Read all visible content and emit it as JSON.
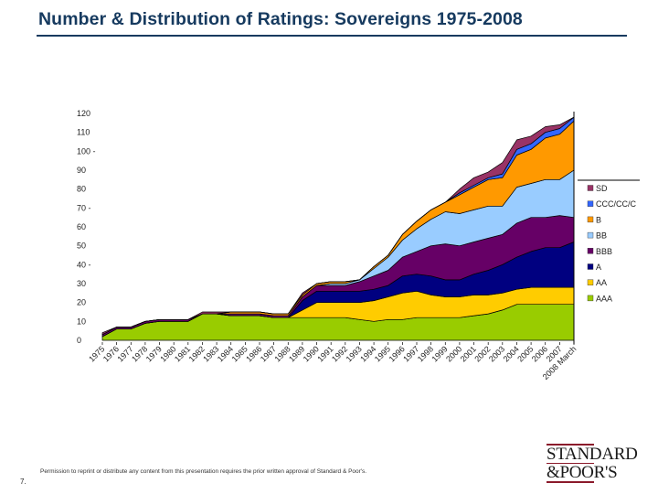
{
  "page": {
    "title": "Number & Distribution of Ratings: Sovereigns 1975-2008",
    "page_number": "7.",
    "footnote": "Permission to reprint or distribute any content from this presentation requires the prior written approval of Standard & Poor's.",
    "logo": {
      "line1": "STANDARD",
      "line2": "&POOR'S",
      "rule_color": "#8b1a2b"
    }
  },
  "chart_data": {
    "type": "area",
    "stacked": true,
    "title": "Number & Distribution of Ratings: Sovereigns 1975-2008",
    "xlabel": "",
    "ylabel": "",
    "ylim": [
      0,
      120
    ],
    "yticks": [
      "0",
      "10",
      "20",
      "30",
      "40 -",
      "50",
      "60",
      "70 -",
      "80",
      "90",
      "100 -",
      "110",
      "120"
    ],
    "grid": false,
    "legend_position": "right",
    "categories": [
      "1975",
      "1976",
      "1977",
      "1978",
      "1979",
      "1980",
      "1981",
      "1982",
      "1983",
      "1984",
      "1985",
      "1986",
      "1987",
      "1988",
      "1989",
      "1990",
      "1991",
      "1992",
      "1993",
      "1994",
      "1995",
      "1996",
      "1997",
      "1998",
      "1999",
      "2000",
      "2001",
      "2002",
      "2003",
      "2004",
      "2005",
      "2006",
      "2007",
      "2008 March"
    ],
    "series": [
      {
        "name": "AAA",
        "color": "#99cc00",
        "values": [
          2,
          6,
          6,
          9,
          10,
          10,
          10,
          14,
          14,
          13,
          13,
          13,
          12,
          12,
          12,
          12,
          12,
          12,
          11,
          10,
          11,
          11,
          12,
          12,
          12,
          12,
          13,
          14,
          16,
          19,
          19,
          19,
          19,
          19
        ]
      },
      {
        "name": "AA",
        "color": "#ffcc00",
        "values": [
          0,
          0,
          0,
          0,
          0,
          0,
          0,
          0,
          0,
          0,
          0,
          0,
          0,
          0,
          4,
          8,
          8,
          8,
          9,
          11,
          12,
          14,
          14,
          12,
          11,
          11,
          11,
          10,
          9,
          8,
          9,
          9,
          9,
          9
        ]
      },
      {
        "name": "A",
        "color": "#000080",
        "values": [
          0,
          0,
          0,
          0,
          0,
          0,
          0,
          0,
          0,
          0,
          0,
          0,
          0,
          0,
          5,
          6,
          6,
          6,
          6,
          6,
          6,
          9,
          9,
          10,
          9,
          9,
          11,
          13,
          15,
          17,
          19,
          21,
          21,
          24
        ]
      },
      {
        "name": "BBB",
        "color": "#660066",
        "values": [
          1,
          1,
          1,
          1,
          1,
          1,
          1,
          0,
          0,
          1,
          1,
          1,
          1,
          1,
          2,
          3,
          3,
          3,
          5,
          7,
          8,
          10,
          12,
          16,
          19,
          18,
          17,
          17,
          16,
          18,
          18,
          16,
          17,
          13
        ]
      },
      {
        "name": "BB",
        "color": "#99ccff",
        "values": [
          0,
          0,
          0,
          0,
          0,
          0,
          0,
          0,
          0,
          0,
          0,
          0,
          0,
          0,
          0,
          0,
          1,
          1,
          1,
          4,
          7,
          9,
          12,
          14,
          17,
          17,
          17,
          17,
          15,
          19,
          18,
          20,
          19,
          25
        ]
      },
      {
        "name": "B",
        "color": "#ff9900",
        "values": [
          0,
          0,
          0,
          0,
          0,
          0,
          0,
          0,
          0,
          1,
          1,
          1,
          1,
          1,
          1,
          1,
          1,
          1,
          0,
          1,
          1,
          3,
          4,
          5,
          5,
          10,
          12,
          14,
          15,
          17,
          18,
          22,
          24,
          26
        ]
      },
      {
        "name": "CCC/CC/C",
        "color": "#3366ff",
        "values": [
          0,
          0,
          0,
          0,
          0,
          0,
          0,
          0,
          0,
          0,
          0,
          0,
          0,
          0,
          0,
          0,
          0,
          0,
          0,
          0,
          0,
          0,
          0,
          0,
          0,
          1,
          1,
          1,
          2,
          3,
          3,
          3,
          3,
          2
        ]
      },
      {
        "name": "SD",
        "color": "#993366",
        "values": [
          1,
          0,
          0,
          0,
          0,
          0,
          0,
          1,
          1,
          0,
          0,
          0,
          0,
          0,
          1,
          0,
          0,
          0,
          0,
          0,
          0,
          0,
          0,
          0,
          0,
          2,
          4,
          3,
          6,
          5,
          4,
          3,
          2,
          0
        ]
      }
    ],
    "legend_order": [
      "SD",
      "CCC/CC/C",
      "B",
      "BB",
      "BBB",
      "A",
      "AA",
      "AAA"
    ]
  }
}
